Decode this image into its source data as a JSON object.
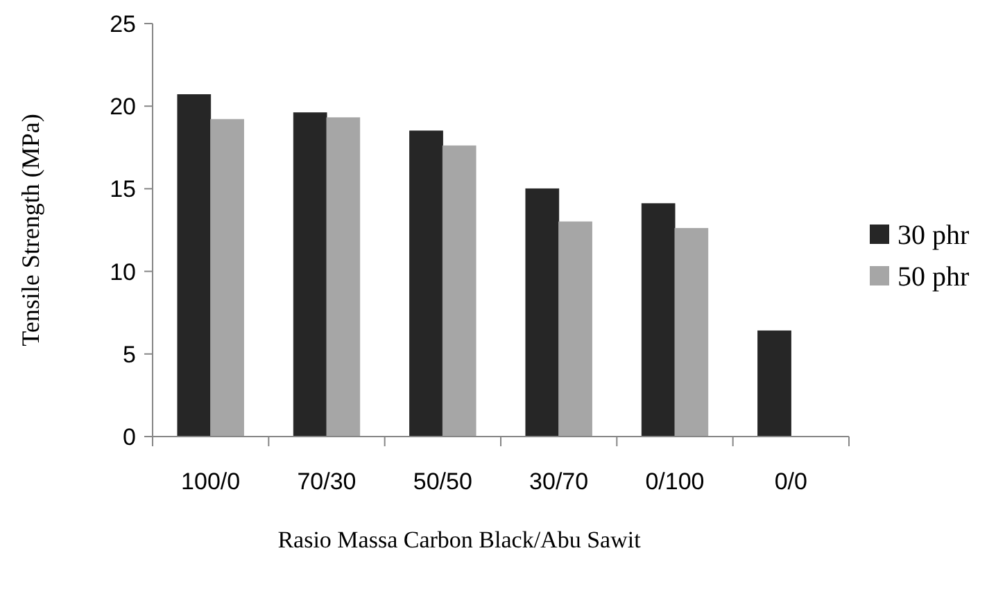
{
  "chart_data": {
    "type": "bar",
    "xlabel": "Rasio Massa Carbon Black/Abu Sawit",
    "ylabel": "Tensile Strength (MPa)",
    "categories": [
      "100/0",
      "70/30",
      "50/50",
      "30/70",
      "0/100",
      "0/0"
    ],
    "series": [
      {
        "name": "30 phr",
        "color": "#262626",
        "values": [
          20.7,
          19.6,
          18.5,
          15.0,
          14.1,
          6.4
        ]
      },
      {
        "name": "50 phr",
        "color": "#a6a6a6",
        "values": [
          19.2,
          19.3,
          17.6,
          13.0,
          12.6,
          null
        ]
      }
    ],
    "ylim": [
      0,
      25
    ],
    "yticks": [
      0,
      5,
      10,
      15,
      20,
      25
    ],
    "grid": false,
    "legend": "right"
  }
}
